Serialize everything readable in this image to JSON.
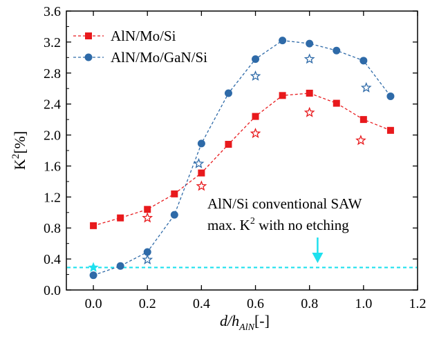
{
  "chart_data": {
    "type": "scatter",
    "xlabel": {
      "main": "d/h",
      "sub": "AlN",
      "unit": "[-]"
    },
    "ylabel": {
      "main": "K",
      "sup": "2",
      "unit": "[%]"
    },
    "xlim": [
      -0.1,
      1.2
    ],
    "ylim": [
      0.0,
      3.6
    ],
    "xticks": [
      0.0,
      0.2,
      0.4,
      0.6,
      0.8,
      1.0,
      1.2
    ],
    "xtick_labels": [
      "0.0",
      "0.2",
      "0.4",
      "0.6",
      "0.8",
      "1.0",
      "1.2"
    ],
    "yticks": [
      0.0,
      0.4,
      0.8,
      1.2,
      1.6,
      2.0,
      2.4,
      2.8,
      3.2,
      3.6
    ],
    "ytick_labels": [
      "0.0",
      "0.4",
      "0.8",
      "1.2",
      "1.6",
      "2.0",
      "2.4",
      "2.8",
      "3.2",
      "3.6"
    ],
    "grid": false,
    "legend_position": "top-left",
    "series": [
      {
        "name": "AlN/Mo/Si",
        "color": "#e8191c",
        "marker": "square",
        "line": "dashed",
        "x": [
          0.0,
          0.1,
          0.2,
          0.3,
          0.4,
          0.5,
          0.6,
          0.7,
          0.8,
          0.9,
          1.0,
          1.1
        ],
        "y": [
          0.83,
          0.93,
          1.04,
          1.24,
          1.51,
          1.88,
          2.24,
          2.51,
          2.54,
          2.41,
          2.2,
          2.06
        ]
      },
      {
        "name": "AlN/Mo/GaN/Si",
        "color": "#2e6aa8",
        "marker": "circle",
        "line": "dashed",
        "x": [
          0.0,
          0.1,
          0.2,
          0.3,
          0.4,
          0.5,
          0.6,
          0.7,
          0.8,
          0.9,
          1.0,
          1.1
        ],
        "y": [
          0.19,
          0.31,
          0.49,
          0.97,
          1.89,
          2.54,
          2.98,
          3.22,
          3.18,
          3.09,
          2.96,
          2.5
        ]
      }
    ],
    "star_points": [
      {
        "color": "#e8191c",
        "x": [
          0.2,
          0.4,
          0.6,
          0.8,
          0.99
        ],
        "y": [
          0.93,
          1.34,
          2.02,
          2.29,
          1.93
        ]
      },
      {
        "color": "#2e6aa8",
        "x": [
          0.2,
          0.39,
          0.6,
          0.8,
          1.01
        ],
        "y": [
          0.39,
          1.63,
          2.76,
          2.98,
          2.61
        ]
      }
    ],
    "reference": {
      "color": "#1ee0ee",
      "y": 0.29,
      "marker_x": 0.0,
      "annotation_lines": [
        "AlN/Si conventional SAW",
        "max. K",
        " with no etching"
      ],
      "annotation_sup": "2",
      "arrow_x": 0.83
    }
  }
}
